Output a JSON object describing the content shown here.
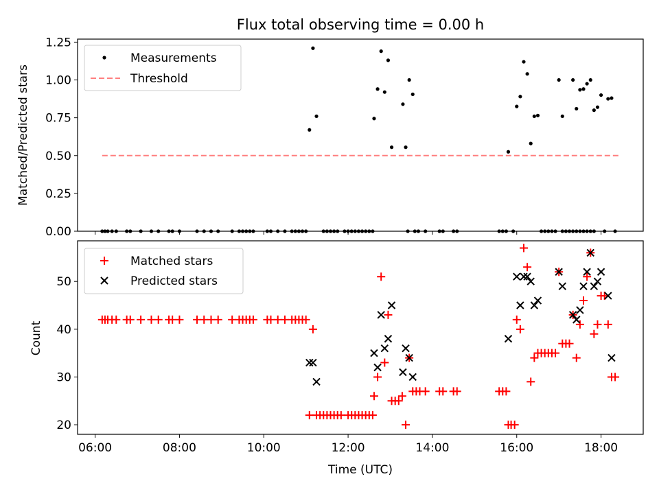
{
  "chart_data": [
    {
      "type": "scatter",
      "title": "Flux total observing time = 0.00 h",
      "xlabel": "",
      "ylabel": "Matched/Predicted stars",
      "xlim": [
        "05:35",
        "19:00"
      ],
      "ylim": [
        0,
        1.27
      ],
      "yticks": [
        "0.00",
        "0.25",
        "0.50",
        "0.75",
        "1.00",
        "1.25"
      ],
      "ytick_values": [
        0,
        0.25,
        0.5,
        0.75,
        1.0,
        1.25
      ],
      "legend_position": "upper-left",
      "grid": false,
      "series": [
        {
          "name": "Measurements",
          "marker": "dot",
          "color": "#000000",
          "points": [
            [
              "06:10",
              0
            ],
            [
              "06:14",
              0
            ],
            [
              "06:18",
              0
            ],
            [
              "06:24",
              0
            ],
            [
              "06:30",
              0
            ],
            [
              "06:45",
              0
            ],
            [
              "06:50",
              0
            ],
            [
              "07:05",
              0
            ],
            [
              "07:20",
              0
            ],
            [
              "07:30",
              0
            ],
            [
              "07:45",
              0
            ],
            [
              "07:50",
              0
            ],
            [
              "08:00",
              0
            ],
            [
              "08:25",
              0
            ],
            [
              "08:35",
              0
            ],
            [
              "08:45",
              0
            ],
            [
              "08:55",
              0
            ],
            [
              "09:15",
              0
            ],
            [
              "09:25",
              0
            ],
            [
              "09:30",
              0
            ],
            [
              "09:35",
              0
            ],
            [
              "09:40",
              0
            ],
            [
              "09:45",
              0
            ],
            [
              "10:05",
              0
            ],
            [
              "10:10",
              0
            ],
            [
              "10:20",
              0
            ],
            [
              "10:30",
              0
            ],
            [
              "10:40",
              0
            ],
            [
              "10:45",
              0
            ],
            [
              "10:50",
              0
            ],
            [
              "10:55",
              0
            ],
            [
              "11:00",
              0
            ],
            [
              "11:25",
              0
            ],
            [
              "11:30",
              0
            ],
            [
              "11:35",
              0
            ],
            [
              "11:40",
              0
            ],
            [
              "11:45",
              0
            ],
            [
              "11:55",
              0
            ],
            [
              "12:00",
              0
            ],
            [
              "12:05",
              0
            ],
            [
              "12:10",
              0
            ],
            [
              "12:15",
              0
            ],
            [
              "12:20",
              0
            ],
            [
              "12:25",
              0
            ],
            [
              "12:30",
              0
            ],
            [
              "12:35",
              0
            ],
            [
              "13:25",
              0
            ],
            [
              "13:35",
              0
            ],
            [
              "13:40",
              0
            ],
            [
              "13:50",
              0
            ],
            [
              "14:10",
              0
            ],
            [
              "14:15",
              0
            ],
            [
              "14:30",
              0
            ],
            [
              "14:35",
              0
            ],
            [
              "15:35",
              0
            ],
            [
              "15:40",
              0
            ],
            [
              "15:45",
              0
            ],
            [
              "15:55",
              0
            ],
            [
              "16:35",
              0
            ],
            [
              "16:40",
              0
            ],
            [
              "16:45",
              0
            ],
            [
              "16:50",
              0
            ],
            [
              "16:55",
              0
            ],
            [
              "17:05",
              0
            ],
            [
              "17:10",
              0
            ],
            [
              "17:15",
              0
            ],
            [
              "17:20",
              0
            ],
            [
              "17:25",
              0
            ],
            [
              "17:30",
              0
            ],
            [
              "17:35",
              0
            ],
            [
              "17:40",
              0
            ],
            [
              "17:45",
              0
            ],
            [
              "17:50",
              0
            ],
            [
              "18:05",
              0
            ],
            [
              "18:20",
              0
            ],
            [
              "11:05",
              0.67
            ],
            [
              "11:10",
              1.21
            ],
            [
              "11:15",
              0.76
            ],
            [
              "12:37",
              0.745
            ],
            [
              "12:42",
              0.94
            ],
            [
              "12:47",
              1.19
            ],
            [
              "12:52",
              0.92
            ],
            [
              "12:57",
              1.13
            ],
            [
              "13:02",
              0.555
            ],
            [
              "13:18",
              0.84
            ],
            [
              "13:22",
              0.555
            ],
            [
              "13:27",
              1.0
            ],
            [
              "13:32",
              0.905
            ],
            [
              "15:48",
              0.525
            ],
            [
              "16:00",
              0.825
            ],
            [
              "16:05",
              0.89
            ],
            [
              "16:10",
              1.12
            ],
            [
              "16:15",
              1.04
            ],
            [
              "16:20",
              0.58
            ],
            [
              "16:25",
              0.76
            ],
            [
              "16:30",
              0.765
            ],
            [
              "17:00",
              1.0
            ],
            [
              "17:05",
              0.76
            ],
            [
              "17:20",
              1.0
            ],
            [
              "17:25",
              0.81
            ],
            [
              "17:30",
              0.935
            ],
            [
              "17:35",
              0.94
            ],
            [
              "17:40",
              0.975
            ],
            [
              "17:45",
              1.0
            ],
            [
              "17:50",
              0.8
            ],
            [
              "17:55",
              0.82
            ],
            [
              "18:00",
              0.9
            ],
            [
              "18:10",
              0.875
            ],
            [
              "18:15",
              0.88
            ]
          ]
        },
        {
          "name": "Threshold",
          "marker": "dashed-line",
          "color": "#ff7f7f",
          "points": [
            [
              "06:10",
              0.5
            ],
            [
              "18:25",
              0.5
            ]
          ]
        }
      ]
    },
    {
      "type": "scatter",
      "title": "",
      "xlabel": "Time (UTC)",
      "ylabel": "Count",
      "xlim": [
        "05:35",
        "19:00"
      ],
      "ylim": [
        18,
        58.5
      ],
      "yticks": [
        "20",
        "30",
        "40",
        "50"
      ],
      "ytick_values": [
        20,
        30,
        40,
        50
      ],
      "xticks": [
        "06:00",
        "08:00",
        "10:00",
        "12:00",
        "14:00",
        "16:00",
        "18:00"
      ],
      "legend_position": "upper-left",
      "grid": false,
      "series": [
        {
          "name": "Matched stars",
          "marker": "plus",
          "color": "#ff0000",
          "points": [
            [
              "06:10",
              42
            ],
            [
              "06:14",
              42
            ],
            [
              "06:18",
              42
            ],
            [
              "06:24",
              42
            ],
            [
              "06:30",
              42
            ],
            [
              "06:45",
              42
            ],
            [
              "06:50",
              42
            ],
            [
              "07:05",
              42
            ],
            [
              "07:20",
              42
            ],
            [
              "07:30",
              42
            ],
            [
              "07:45",
              42
            ],
            [
              "07:50",
              42
            ],
            [
              "08:00",
              42
            ],
            [
              "08:25",
              42
            ],
            [
              "08:35",
              42
            ],
            [
              "08:45",
              42
            ],
            [
              "08:55",
              42
            ],
            [
              "09:15",
              42
            ],
            [
              "09:25",
              42
            ],
            [
              "09:30",
              42
            ],
            [
              "09:35",
              42
            ],
            [
              "09:40",
              42
            ],
            [
              "09:45",
              42
            ],
            [
              "10:05",
              42
            ],
            [
              "10:10",
              42
            ],
            [
              "10:20",
              42
            ],
            [
              "10:30",
              42
            ],
            [
              "10:40",
              42
            ],
            [
              "10:45",
              42
            ],
            [
              "10:50",
              42
            ],
            [
              "10:55",
              42
            ],
            [
              "11:00",
              42
            ],
            [
              "11:05",
              22
            ],
            [
              "11:10",
              40
            ],
            [
              "11:15",
              22
            ],
            [
              "11:20",
              22
            ],
            [
              "11:25",
              22
            ],
            [
              "11:30",
              22
            ],
            [
              "11:35",
              22
            ],
            [
              "11:40",
              22
            ],
            [
              "11:45",
              22
            ],
            [
              "11:50",
              22
            ],
            [
              "12:00",
              22
            ],
            [
              "12:05",
              22
            ],
            [
              "12:10",
              22
            ],
            [
              "12:15",
              22
            ],
            [
              "12:20",
              22
            ],
            [
              "12:25",
              22
            ],
            [
              "12:30",
              22
            ],
            [
              "12:35",
              22
            ],
            [
              "12:37",
              26
            ],
            [
              "12:42",
              30
            ],
            [
              "12:47",
              51
            ],
            [
              "12:52",
              33
            ],
            [
              "12:57",
              43
            ],
            [
              "13:02",
              25
            ],
            [
              "13:07",
              25
            ],
            [
              "13:12",
              25
            ],
            [
              "13:17",
              26
            ],
            [
              "13:22",
              20
            ],
            [
              "13:27",
              34
            ],
            [
              "13:32",
              27
            ],
            [
              "13:37",
              27
            ],
            [
              "13:42",
              27
            ],
            [
              "13:50",
              27
            ],
            [
              "14:10",
              27
            ],
            [
              "14:15",
              27
            ],
            [
              "14:30",
              27
            ],
            [
              "14:35",
              27
            ],
            [
              "15:35",
              27
            ],
            [
              "15:40",
              27
            ],
            [
              "15:45",
              27
            ],
            [
              "15:48",
              20
            ],
            [
              "15:52",
              20
            ],
            [
              "15:57",
              20
            ],
            [
              "16:00",
              42
            ],
            [
              "16:05",
              40
            ],
            [
              "16:10",
              57
            ],
            [
              "16:15",
              53
            ],
            [
              "16:20",
              29
            ],
            [
              "16:25",
              34
            ],
            [
              "16:30",
              35
            ],
            [
              "16:35",
              35
            ],
            [
              "16:40",
              35
            ],
            [
              "16:45",
              35
            ],
            [
              "16:50",
              35
            ],
            [
              "16:55",
              35
            ],
            [
              "17:00",
              52
            ],
            [
              "17:05",
              37
            ],
            [
              "17:10",
              37
            ],
            [
              "17:15",
              37
            ],
            [
              "17:20",
              43
            ],
            [
              "17:25",
              34
            ],
            [
              "17:30",
              41
            ],
            [
              "17:35",
              46
            ],
            [
              "17:40",
              51
            ],
            [
              "17:45",
              56
            ],
            [
              "17:50",
              39
            ],
            [
              "17:55",
              41
            ],
            [
              "18:00",
              47
            ],
            [
              "18:05",
              47
            ],
            [
              "18:10",
              41
            ],
            [
              "18:15",
              30
            ],
            [
              "18:20",
              30
            ]
          ]
        },
        {
          "name": "Predicted stars",
          "marker": "x",
          "color": "#000000",
          "points": [
            [
              "11:05",
              33
            ],
            [
              "11:10",
              33
            ],
            [
              "11:15",
              29
            ],
            [
              "12:37",
              35
            ],
            [
              "12:42",
              32
            ],
            [
              "12:47",
              43
            ],
            [
              "12:52",
              36
            ],
            [
              "12:57",
              38
            ],
            [
              "13:02",
              45
            ],
            [
              "13:18",
              31
            ],
            [
              "13:22",
              36
            ],
            [
              "13:27",
              34
            ],
            [
              "13:32",
              30
            ],
            [
              "15:48",
              38
            ],
            [
              "16:00",
              51
            ],
            [
              "16:05",
              45
            ],
            [
              "16:10",
              51
            ],
            [
              "16:15",
              51
            ],
            [
              "16:20",
              50
            ],
            [
              "16:25",
              45
            ],
            [
              "16:30",
              46
            ],
            [
              "17:00",
              52
            ],
            [
              "17:05",
              49
            ],
            [
              "17:20",
              43
            ],
            [
              "17:25",
              42
            ],
            [
              "17:30",
              44
            ],
            [
              "17:35",
              49
            ],
            [
              "17:40",
              52
            ],
            [
              "17:45",
              56
            ],
            [
              "17:50",
              49
            ],
            [
              "17:55",
              50
            ],
            [
              "18:00",
              52
            ],
            [
              "18:10",
              47
            ],
            [
              "18:15",
              34
            ]
          ]
        }
      ]
    }
  ]
}
